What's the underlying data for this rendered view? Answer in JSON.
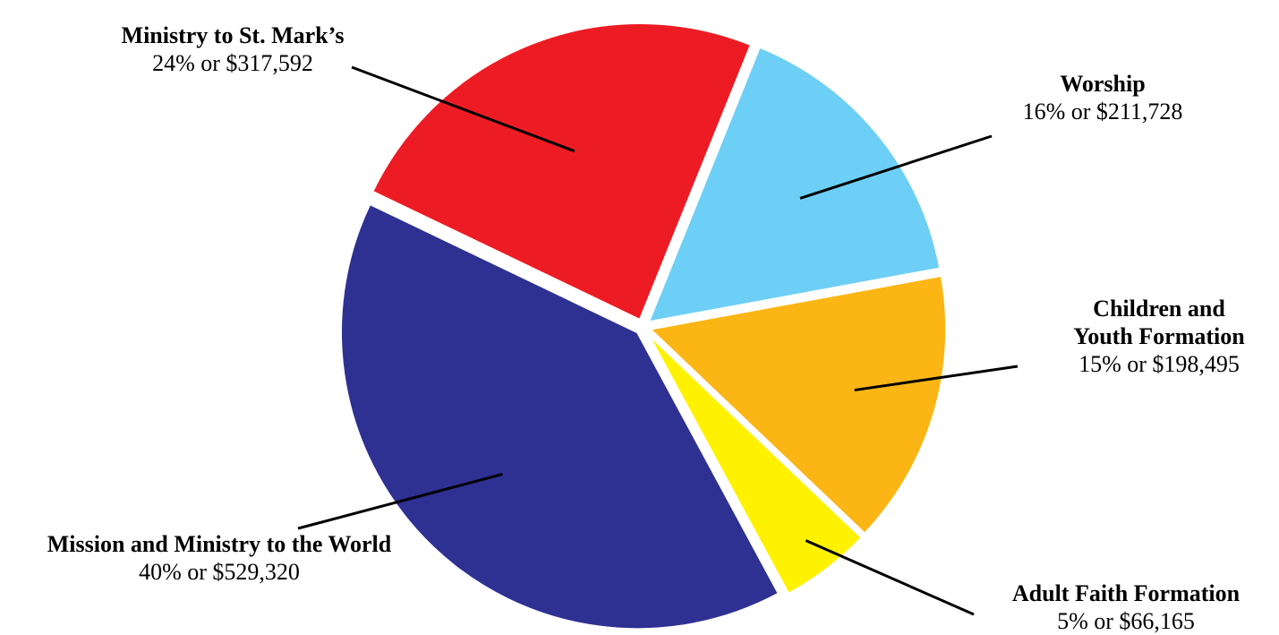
{
  "chart_data": {
    "type": "pie",
    "exploded": true,
    "slices": [
      {
        "name": "Worship",
        "percent": 16,
        "value": 211728,
        "value_label": "16% or $211,728",
        "color": "#6DCFF6"
      },
      {
        "name": "Children and Youth Formation",
        "name_lines": [
          "Children and",
          "Youth Formation"
        ],
        "percent": 15,
        "value": 198495,
        "value_label": "15% or $198,495",
        "color": "#FBB615"
      },
      {
        "name": "Adult Faith Formation",
        "percent": 5,
        "value": 66165,
        "value_label": "5% or $66,165",
        "color": "#FFF200"
      },
      {
        "name": "Mission and Ministry to the World",
        "percent": 40,
        "value": 529320,
        "value_label": "40% or $529,320",
        "color": "#2E3192"
      },
      {
        "name": "Ministry to St. Mark’s",
        "percent": 24,
        "value": 317592,
        "value_label": "24% or $317,592",
        "color": "#ED1C24"
      }
    ]
  }
}
